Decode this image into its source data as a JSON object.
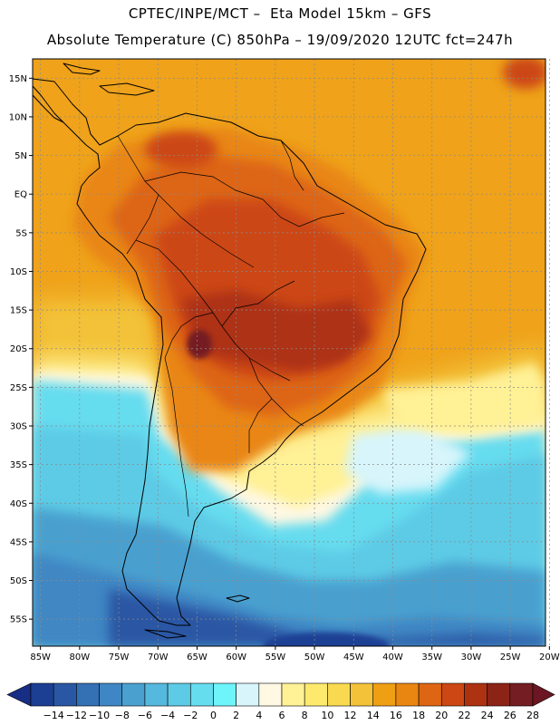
{
  "header": {
    "line1": "CPTEC/INPE/MCT –  Eta Model 15km – GFS",
    "line2": "Absolute Temperature (C) 850hPa – 19/09/2020 12UTC fct=247h"
  },
  "axes": {
    "lat_labels": [
      "15N",
      "10N",
      "5N",
      "EQ",
      "5S",
      "10S",
      "15S",
      "20S",
      "25S",
      "30S",
      "35S",
      "40S",
      "45S",
      "50S",
      "55S"
    ],
    "lon_labels": [
      "85W",
      "80W",
      "75W",
      "70W",
      "65W",
      "60W",
      "55W",
      "50W",
      "45W",
      "40W",
      "35W",
      "30W",
      "25W",
      "20W"
    ],
    "lat_range": [
      17.5,
      -58.5
    ],
    "lon_range": [
      -86,
      -20.5
    ]
  },
  "colorbar": {
    "labels": [
      "-14",
      "-12",
      "-10",
      "-8",
      "-6",
      "-4",
      "-2",
      "0",
      "2",
      "4",
      "6",
      "8",
      "10",
      "12",
      "14",
      "16",
      "18",
      "20",
      "22",
      "24",
      "26",
      "28"
    ],
    "colors": [
      "#1c3f94",
      "#2a57a4",
      "#3470b4",
      "#3f87c4",
      "#4aa0cf",
      "#55b8dd",
      "#5dcbe6",
      "#66dcef",
      "#6ef4fb",
      "#d7f5fb",
      "#fff8e3",
      "#fff196",
      "#fde96d",
      "#f9d950",
      "#f3c239",
      "#ef9f14",
      "#e98612",
      "#dd6514",
      "#cc4713",
      "#ad3212",
      "#8b2316",
      "#741d23"
    ],
    "under_color": "#172e85",
    "over_color": "#6c1623"
  },
  "geography": {
    "continent": "South America",
    "ocean_bodies": [
      "Pacific",
      "Atlantic",
      "Caribbean"
    ]
  }
}
